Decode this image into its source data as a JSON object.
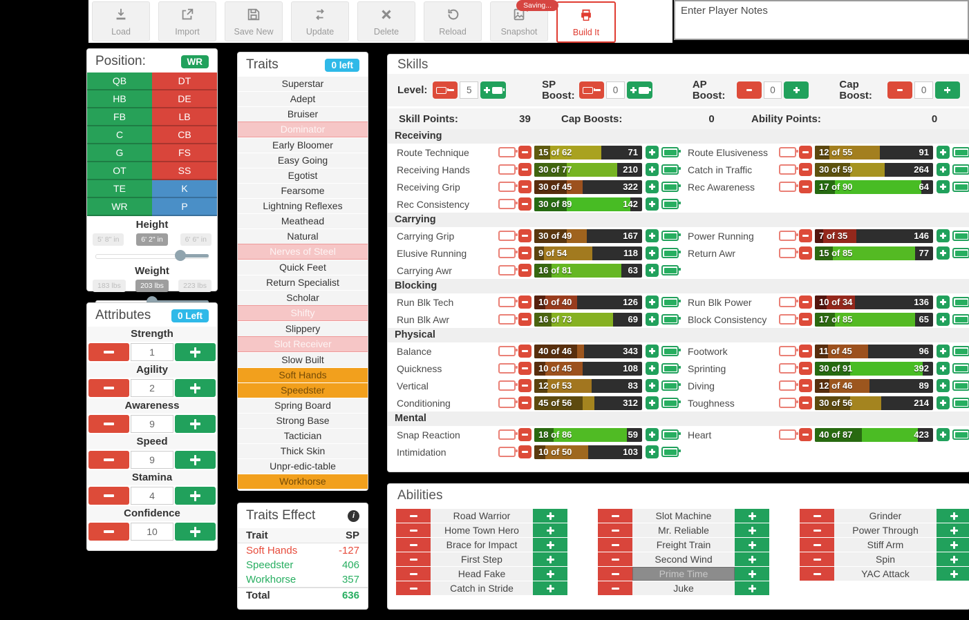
{
  "colors": {
    "red": "#dd4b39",
    "green": "#21a15c",
    "blue": "#4a8fc7",
    "cyan": "#2fb9e8",
    "orange": "#f2a01d",
    "pink_disabled": "#f6c6c6",
    "bar_background": "#2e2e2e",
    "accent_build": "#e03c31"
  },
  "toolbar": {
    "buttons": [
      {
        "label": "Load",
        "icon": "download"
      },
      {
        "label": "Import",
        "icon": "export"
      },
      {
        "label": "Save New",
        "icon": "save"
      },
      {
        "label": "Update",
        "icon": "repeat"
      },
      {
        "label": "Delete",
        "icon": "close"
      },
      {
        "label": "Reload",
        "icon": "undo"
      },
      {
        "label": "Snapshot",
        "icon": "image",
        "tooltip": "Saving..."
      },
      {
        "label": "Build It",
        "icon": "printer",
        "accent": true
      }
    ]
  },
  "notes": {
    "placeholder": "Enter Player Notes"
  },
  "position_panel": {
    "title": "Position:",
    "selected": "WR",
    "cells": [
      {
        "label": "QB",
        "color": "green"
      },
      {
        "label": "DT",
        "color": "red"
      },
      {
        "label": "HB",
        "color": "green"
      },
      {
        "label": "DE",
        "color": "red"
      },
      {
        "label": "FB",
        "color": "green"
      },
      {
        "label": "LB",
        "color": "red"
      },
      {
        "label": "C",
        "color": "green"
      },
      {
        "label": "CB",
        "color": "red"
      },
      {
        "label": "G",
        "color": "green"
      },
      {
        "label": "FS",
        "color": "red"
      },
      {
        "label": "OT",
        "color": "green"
      },
      {
        "label": "SS",
        "color": "red"
      },
      {
        "label": "TE",
        "color": "green"
      },
      {
        "label": "K",
        "color": "blue"
      },
      {
        "label": "WR",
        "color": "green"
      },
      {
        "label": "P",
        "color": "blue"
      }
    ],
    "height": {
      "title": "Height",
      "labels": [
        "5' 8\" in",
        "6' 2\" in",
        "6' 6\" in"
      ],
      "selected_index": 1,
      "thumb_percent": 75
    },
    "weight": {
      "title": "Weight",
      "labels": [
        "183 lbs",
        "203 lbs",
        "223 lbs"
      ],
      "selected_index": 1,
      "thumb_percent": 50
    }
  },
  "attributes_panel": {
    "title": "Attributes",
    "badge": "0 Left",
    "items": [
      {
        "name": "Strength",
        "value": 1
      },
      {
        "name": "Agility",
        "value": 2
      },
      {
        "name": "Awareness",
        "value": 9
      },
      {
        "name": "Speed",
        "value": 9
      },
      {
        "name": "Stamina",
        "value": 4
      },
      {
        "name": "Confidence",
        "value": 10
      }
    ]
  },
  "traits_panel": {
    "title": "Traits",
    "badge": "0 left",
    "items": [
      {
        "label": "Superstar",
        "state": "normal"
      },
      {
        "label": "Adept",
        "state": "normal"
      },
      {
        "label": "Bruiser",
        "state": "normal"
      },
      {
        "label": "Dominator",
        "state": "disabled"
      },
      {
        "label": "Early Bloomer",
        "state": "normal"
      },
      {
        "label": "Easy Going",
        "state": "normal"
      },
      {
        "label": "Egotist",
        "state": "normal"
      },
      {
        "label": "Fearsome",
        "state": "normal"
      },
      {
        "label": "Lightning Reflexes",
        "state": "normal"
      },
      {
        "label": "Meathead",
        "state": "normal"
      },
      {
        "label": "Natural",
        "state": "normal"
      },
      {
        "label": "Nerves of Steel",
        "state": "disabled"
      },
      {
        "label": "Quick Feet",
        "state": "normal"
      },
      {
        "label": "Return Specialist",
        "state": "normal"
      },
      {
        "label": "Scholar",
        "state": "normal"
      },
      {
        "label": "Shifty",
        "state": "disabled"
      },
      {
        "label": "Slippery",
        "state": "normal"
      },
      {
        "label": "Slot Receiver",
        "state": "disabled"
      },
      {
        "label": "Slow Built",
        "state": "normal"
      },
      {
        "label": "Soft Hands",
        "state": "selected"
      },
      {
        "label": "Speedster",
        "state": "selected"
      },
      {
        "label": "Spring Board",
        "state": "normal"
      },
      {
        "label": "Strong Base",
        "state": "normal"
      },
      {
        "label": "Tactician",
        "state": "normal"
      },
      {
        "label": "Thick Skin",
        "state": "normal"
      },
      {
        "label": "Unpr-edic-table",
        "state": "normal"
      },
      {
        "label": "Workhorse",
        "state": "selected"
      }
    ]
  },
  "traits_effect": {
    "title": "Traits Effect",
    "columns": [
      "Trait",
      "SP"
    ],
    "rows": [
      {
        "trait": "Soft Hands",
        "sp": "-127",
        "tone": "neg"
      },
      {
        "trait": "Speedster",
        "sp": "406",
        "tone": "pos"
      },
      {
        "trait": "Workhorse",
        "sp": "357",
        "tone": "pos"
      }
    ],
    "total": {
      "label": "Total",
      "sp": "636"
    }
  },
  "skills": {
    "title": "Skills",
    "of_label": "of",
    "controls": [
      {
        "label": "Level:",
        "value": 5,
        "type": "battery"
      },
      {
        "label": "SP Boost:",
        "value": 0,
        "type": "battery",
        "wrap": true
      },
      {
        "label": "AP Boost:",
        "value": 0,
        "type": "simple"
      },
      {
        "label": "Cap Boost:",
        "value": 0,
        "type": "simple"
      }
    ],
    "summary": [
      {
        "label": "Skill Points:",
        "value": 39
      },
      {
        "label": "Cap Boosts:",
        "value": 0
      },
      {
        "label": "Ability Points:",
        "value": 0
      }
    ],
    "groups": [
      {
        "name": "Receiving",
        "left": [
          {
            "name": "Route Technique",
            "level": 15,
            "cap": 62,
            "cost": 71
          },
          {
            "name": "Receiving Hands",
            "level": 30,
            "cap": 77,
            "cost": 210
          },
          {
            "name": "Receiving Grip",
            "level": 30,
            "cap": 45,
            "cost": 322
          },
          {
            "name": "Rec Consistency",
            "level": 30,
            "cap": 89,
            "cost": 142
          }
        ],
        "right": [
          {
            "name": "Route Elusiveness",
            "level": 12,
            "cap": 55,
            "cost": 91
          },
          {
            "name": "Catch in Traffic",
            "level": 30,
            "cap": 59,
            "cost": 264
          },
          {
            "name": "Rec Awareness",
            "level": 17,
            "cap": 90,
            "cost": 64
          }
        ]
      },
      {
        "name": "Carrying",
        "left": [
          {
            "name": "Carrying Grip",
            "level": 30,
            "cap": 49,
            "cost": 167
          },
          {
            "name": "Elusive Running",
            "level": 9,
            "cap": 54,
            "cost": 118
          },
          {
            "name": "Carrying Awr",
            "level": 16,
            "cap": 81,
            "cost": 63
          }
        ],
        "right": [
          {
            "name": "Power Running",
            "level": 7,
            "cap": 35,
            "cost": 146
          },
          {
            "name": "Return Awr",
            "level": 15,
            "cap": 85,
            "cost": 77
          }
        ]
      },
      {
        "name": "Blocking",
        "left": [
          {
            "name": "Run Blk Tech",
            "level": 10,
            "cap": 40,
            "cost": 126
          },
          {
            "name": "Run Blk Awr",
            "level": 16,
            "cap": 73,
            "cost": 69
          }
        ],
        "right": [
          {
            "name": "Run Blk Power",
            "level": 10,
            "cap": 34,
            "cost": 136
          },
          {
            "name": "Block Consistency",
            "level": 17,
            "cap": 85,
            "cost": 65
          }
        ]
      },
      {
        "name": "Physical",
        "left": [
          {
            "name": "Balance",
            "level": 40,
            "cap": 46,
            "cost": 343
          },
          {
            "name": "Quickness",
            "level": 10,
            "cap": 45,
            "cost": 108
          },
          {
            "name": "Vertical",
            "level": 12,
            "cap": 53,
            "cost": 83
          },
          {
            "name": "Conditioning",
            "level": 45,
            "cap": 56,
            "cost": 312
          }
        ],
        "right": [
          {
            "name": "Footwork",
            "level": 11,
            "cap": 45,
            "cost": 96
          },
          {
            "name": "Sprinting",
            "level": 30,
            "cap": 91,
            "cost": 392
          },
          {
            "name": "Diving",
            "level": 12,
            "cap": 46,
            "cost": 89
          },
          {
            "name": "Toughness",
            "level": 30,
            "cap": 56,
            "cost": 214
          }
        ]
      },
      {
        "name": "Mental",
        "left": [
          {
            "name": "Snap Reaction",
            "level": 18,
            "cap": 86,
            "cost": 59
          },
          {
            "name": "Intimidation",
            "level": 10,
            "cap": 50,
            "cost": 103
          }
        ],
        "right": [
          {
            "name": "Heart",
            "level": 40,
            "cap": 87,
            "cost": 423
          }
        ]
      }
    ]
  },
  "abilities": {
    "title": "Abilities",
    "highlighted": "Prime Time",
    "columns": [
      [
        "Road Warrior",
        "Home Town Hero",
        "Brace for Impact",
        "First Step",
        "Head Fake",
        "Catch in Stride"
      ],
      [
        "Slot Machine",
        "Mr. Reliable",
        "Freight Train",
        "Second Wind",
        "Prime Time",
        "Juke"
      ],
      [
        "Grinder",
        "Power Through",
        "Stiff Arm",
        "Spin",
        "YAC Attack"
      ]
    ]
  }
}
